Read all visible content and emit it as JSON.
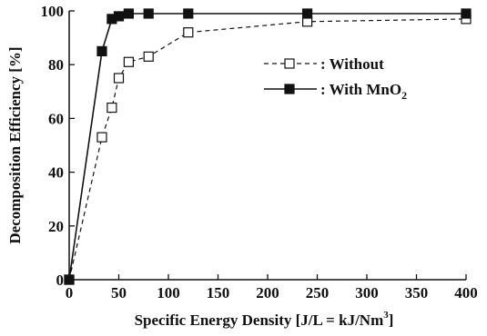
{
  "chart_data": {
    "type": "line",
    "title": "",
    "xlabel": "Specific Energy Density [J/L = kJ/Nm",
    "xlabel_sup": "3",
    "xlabel_end": "]",
    "ylabel": "Decomposition  Efficiency [%]",
    "xlim": [
      0,
      400
    ],
    "ylim": [
      0,
      100
    ],
    "xticks": [
      0,
      50,
      100,
      150,
      200,
      250,
      300,
      350,
      400
    ],
    "yticks": [
      0,
      20,
      40,
      60,
      80,
      100
    ],
    "grid": false,
    "legend_position": "top-right",
    "series": [
      {
        "name": ": Without",
        "marker": "open-square",
        "line_style": "dashed",
        "color": "#111111",
        "x": [
          0,
          33,
          43,
          50,
          60,
          80,
          120,
          240,
          400
        ],
        "y": [
          0,
          53,
          64,
          75,
          81,
          83,
          92,
          96,
          97
        ]
      },
      {
        "name_prefix": ": With MnO",
        "name_sub": "2",
        "marker": "filled-square",
        "line_style": "solid",
        "color": "#111111",
        "x": [
          0,
          33,
          43,
          50,
          60,
          80,
          120,
          240,
          400
        ],
        "y": [
          0,
          85,
          97,
          98,
          99,
          99,
          99,
          99,
          99
        ]
      }
    ]
  }
}
